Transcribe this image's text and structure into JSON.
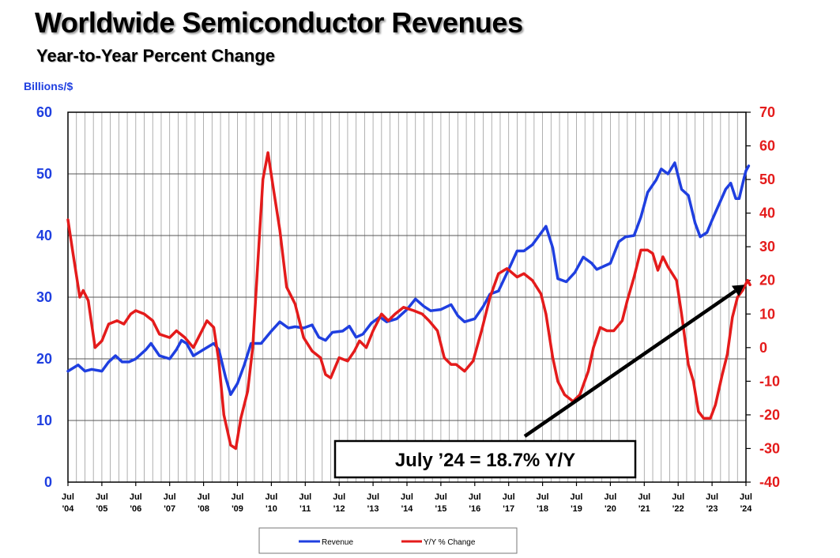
{
  "chart_data": {
    "type": "line",
    "title": "Worldwide Semiconductor Revenues",
    "subtitle": "Year-to-Year Percent Change",
    "y_left_label": "Billions/$",
    "y_left_range": [
      0,
      60
    ],
    "y_left_ticks": [
      "0",
      "10",
      "20",
      "30",
      "40",
      "50",
      "60"
    ],
    "y_right_range": [
      -40,
      70
    ],
    "y_right_ticks": [
      "-40",
      "-30",
      "-20",
      "-10",
      "0",
      "10",
      "20",
      "30",
      "40",
      "50",
      "60",
      "70"
    ],
    "x_range": [
      2004.5,
      2024.5
    ],
    "x_ticks": [
      {
        "month": "Jul",
        "year": "'04"
      },
      {
        "month": "Jul",
        "year": "'05"
      },
      {
        "month": "Jul",
        "year": "'06"
      },
      {
        "month": "Jul",
        "year": "'07"
      },
      {
        "month": "Jul",
        "year": "'08"
      },
      {
        "month": "Jul",
        "year": "'09"
      },
      {
        "month": "Jul",
        "year": "'10"
      },
      {
        "month": "Jul",
        "year": "'11"
      },
      {
        "month": "Jul",
        "year": "'12"
      },
      {
        "month": "Jul",
        "year": "'13"
      },
      {
        "month": "Jul",
        "year": "'14"
      },
      {
        "month": "Jul",
        "year": "'15"
      },
      {
        "month": "Jul",
        "year": "'16"
      },
      {
        "month": "Jul",
        "year": "'17"
      },
      {
        "month": "Jul",
        "year": "'18"
      },
      {
        "month": "Jul",
        "year": "'19"
      },
      {
        "month": "Jul",
        "year": "'20"
      },
      {
        "month": "Jul",
        "year": "'21"
      },
      {
        "month": "Jul",
        "year": "'22"
      },
      {
        "month": "Jul",
        "year": "'23"
      },
      {
        "month": "Jul",
        "year": "'24"
      }
    ],
    "grid": true,
    "legend_position": "bottom-center",
    "annotation": {
      "text": "July ’24 = 18.7% Y/Y",
      "arrow_to": {
        "x": 2024.5,
        "y_right": 18.7
      }
    },
    "series": [
      {
        "name": "Revenue",
        "color": "#1f3fe0",
        "axis": "left",
        "points": [
          [
            2004.5,
            18
          ],
          [
            2004.8,
            19
          ],
          [
            2005.0,
            18
          ],
          [
            2005.2,
            18.3
          ],
          [
            2005.5,
            18
          ],
          [
            2005.7,
            19.5
          ],
          [
            2005.9,
            20.5
          ],
          [
            2006.1,
            19.5
          ],
          [
            2006.3,
            19.5
          ],
          [
            2006.5,
            20
          ],
          [
            2006.8,
            21.5
          ],
          [
            2006.95,
            22.5
          ],
          [
            2007.2,
            20.5
          ],
          [
            2007.5,
            20
          ],
          [
            2007.7,
            21.5
          ],
          [
            2007.85,
            23
          ],
          [
            2008.0,
            22.5
          ],
          [
            2008.2,
            20.5
          ],
          [
            2008.5,
            21.5
          ],
          [
            2008.8,
            22.5
          ],
          [
            2008.95,
            21.5
          ],
          [
            2009.15,
            17
          ],
          [
            2009.3,
            14.2
          ],
          [
            2009.5,
            16
          ],
          [
            2009.7,
            19
          ],
          [
            2009.9,
            22.5
          ],
          [
            2010.2,
            22.5
          ],
          [
            2010.5,
            24.5
          ],
          [
            2010.75,
            26
          ],
          [
            2011.0,
            25
          ],
          [
            2011.2,
            25.2
          ],
          [
            2011.45,
            25
          ],
          [
            2011.7,
            25.5
          ],
          [
            2011.9,
            23.5
          ],
          [
            2012.1,
            23
          ],
          [
            2012.3,
            24.3
          ],
          [
            2012.6,
            24.5
          ],
          [
            2012.8,
            25.3
          ],
          [
            2013.0,
            23.5
          ],
          [
            2013.2,
            24
          ],
          [
            2013.45,
            25.8
          ],
          [
            2013.7,
            26.8
          ],
          [
            2013.9,
            26
          ],
          [
            2014.2,
            26.5
          ],
          [
            2014.5,
            28
          ],
          [
            2014.75,
            29.7
          ],
          [
            2015.0,
            28.5
          ],
          [
            2015.2,
            27.8
          ],
          [
            2015.5,
            28
          ],
          [
            2015.8,
            28.8
          ],
          [
            2016.0,
            27
          ],
          [
            2016.2,
            26
          ],
          [
            2016.5,
            26.5
          ],
          [
            2016.75,
            28.5
          ],
          [
            2016.95,
            30.5
          ],
          [
            2017.2,
            31
          ],
          [
            2017.5,
            34.5
          ],
          [
            2017.75,
            37.5
          ],
          [
            2017.95,
            37.5
          ],
          [
            2018.2,
            38.5
          ],
          [
            2018.4,
            40
          ],
          [
            2018.6,
            41.5
          ],
          [
            2018.8,
            38
          ],
          [
            2018.95,
            33
          ],
          [
            2019.2,
            32.5
          ],
          [
            2019.45,
            34
          ],
          [
            2019.7,
            36.5
          ],
          [
            2019.95,
            35.5
          ],
          [
            2020.1,
            34.5
          ],
          [
            2020.3,
            35
          ],
          [
            2020.5,
            35.5
          ],
          [
            2020.75,
            39
          ],
          [
            2020.95,
            39.8
          ],
          [
            2021.2,
            40
          ],
          [
            2021.4,
            43
          ],
          [
            2021.6,
            47
          ],
          [
            2021.85,
            49
          ],
          [
            2022.0,
            50.8
          ],
          [
            2022.2,
            50
          ],
          [
            2022.4,
            51.8
          ],
          [
            2022.6,
            47.5
          ],
          [
            2022.8,
            46.5
          ],
          [
            2023.0,
            42
          ],
          [
            2023.15,
            39.8
          ],
          [
            2023.35,
            40.5
          ],
          [
            2023.5,
            42.5
          ],
          [
            2023.7,
            45
          ],
          [
            2023.9,
            47.5
          ],
          [
            2024.05,
            48.5
          ],
          [
            2024.2,
            46
          ],
          [
            2024.3,
            46
          ],
          [
            2024.45,
            49.5
          ],
          [
            2024.5,
            50.5
          ],
          [
            2024.58,
            51.3
          ]
        ]
      },
      {
        "name": "Y/Y % Change",
        "color": "#e41b1b",
        "axis": "right",
        "points": [
          [
            2004.5,
            38
          ],
          [
            2004.65,
            28
          ],
          [
            2004.85,
            15
          ],
          [
            2004.95,
            17
          ],
          [
            2005.1,
            14
          ],
          [
            2005.3,
            0
          ],
          [
            2005.5,
            2
          ],
          [
            2005.7,
            7
          ],
          [
            2005.95,
            8
          ],
          [
            2006.15,
            7
          ],
          [
            2006.35,
            10
          ],
          [
            2006.5,
            11
          ],
          [
            2006.75,
            10
          ],
          [
            2007.0,
            8
          ],
          [
            2007.2,
            4
          ],
          [
            2007.5,
            3
          ],
          [
            2007.7,
            5
          ],
          [
            2007.95,
            3
          ],
          [
            2008.2,
            0
          ],
          [
            2008.4,
            4
          ],
          [
            2008.6,
            8
          ],
          [
            2008.8,
            6
          ],
          [
            2008.95,
            -4
          ],
          [
            2009.1,
            -20
          ],
          [
            2009.3,
            -29
          ],
          [
            2009.45,
            -30
          ],
          [
            2009.6,
            -21
          ],
          [
            2009.8,
            -13
          ],
          [
            2009.95,
            0
          ],
          [
            2010.1,
            25
          ],
          [
            2010.25,
            50
          ],
          [
            2010.4,
            58
          ],
          [
            2010.55,
            48
          ],
          [
            2010.75,
            35
          ],
          [
            2010.95,
            18
          ],
          [
            2011.2,
            13
          ],
          [
            2011.45,
            3
          ],
          [
            2011.7,
            -1
          ],
          [
            2011.95,
            -3
          ],
          [
            2012.1,
            -8
          ],
          [
            2012.25,
            -9
          ],
          [
            2012.5,
            -3
          ],
          [
            2012.75,
            -4
          ],
          [
            2012.95,
            -1
          ],
          [
            2013.1,
            2
          ],
          [
            2013.3,
            0
          ],
          [
            2013.5,
            5
          ],
          [
            2013.75,
            10
          ],
          [
            2013.95,
            8
          ],
          [
            2014.15,
            10
          ],
          [
            2014.4,
            12
          ],
          [
            2014.7,
            11
          ],
          [
            2014.95,
            10
          ],
          [
            2015.15,
            8
          ],
          [
            2015.4,
            5
          ],
          [
            2015.6,
            -3
          ],
          [
            2015.8,
            -5
          ],
          [
            2015.95,
            -5
          ],
          [
            2016.2,
            -7
          ],
          [
            2016.45,
            -4
          ],
          [
            2016.7,
            5
          ],
          [
            2016.95,
            15
          ],
          [
            2017.2,
            22
          ],
          [
            2017.45,
            23.5
          ],
          [
            2017.75,
            21
          ],
          [
            2017.95,
            22
          ],
          [
            2018.2,
            20
          ],
          [
            2018.45,
            16
          ],
          [
            2018.6,
            10
          ],
          [
            2018.8,
            -3
          ],
          [
            2018.95,
            -10
          ],
          [
            2019.15,
            -14
          ],
          [
            2019.4,
            -16
          ],
          [
            2019.6,
            -14
          ],
          [
            2019.85,
            -7
          ],
          [
            2020.0,
            0
          ],
          [
            2020.2,
            6
          ],
          [
            2020.4,
            5
          ],
          [
            2020.6,
            5
          ],
          [
            2020.85,
            8
          ],
          [
            2021.0,
            14
          ],
          [
            2021.2,
            21
          ],
          [
            2021.4,
            29
          ],
          [
            2021.6,
            29
          ],
          [
            2021.75,
            28
          ],
          [
            2021.9,
            23
          ],
          [
            2022.05,
            27
          ],
          [
            2022.2,
            24
          ],
          [
            2022.45,
            20
          ],
          [
            2022.6,
            10
          ],
          [
            2022.8,
            -5
          ],
          [
            2022.95,
            -10
          ],
          [
            2023.1,
            -19
          ],
          [
            2023.25,
            -21
          ],
          [
            2023.45,
            -21
          ],
          [
            2023.6,
            -17
          ],
          [
            2023.8,
            -8
          ],
          [
            2023.95,
            -2
          ],
          [
            2024.1,
            9
          ],
          [
            2024.25,
            15
          ],
          [
            2024.4,
            17
          ],
          [
            2024.55,
            20
          ],
          [
            2024.62,
            18.7
          ]
        ]
      }
    ]
  }
}
